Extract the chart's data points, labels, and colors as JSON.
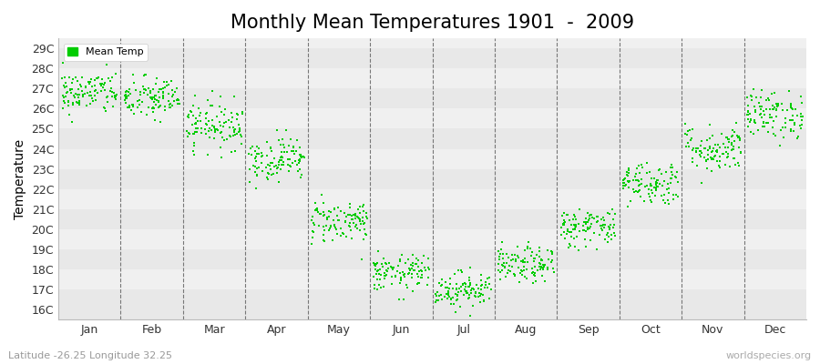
{
  "title": "Monthly Mean Temperatures 1901  -  2009",
  "ylabel": "Temperature",
  "xlabel_bottom": "Latitude -26.25 Longitude 32.25",
  "watermark": "worldspecies.org",
  "legend_label": "Mean Temp",
  "months": [
    "Jan",
    "Feb",
    "Mar",
    "Apr",
    "May",
    "Jun",
    "Jul",
    "Aug",
    "Sep",
    "Oct",
    "Nov",
    "Dec"
  ],
  "dashed_lines_x": [
    1,
    2,
    3,
    4,
    5,
    6,
    7,
    8,
    9,
    10,
    11
  ],
  "ylim": [
    15.5,
    29.5
  ],
  "yticks": [
    16,
    17,
    18,
    19,
    20,
    21,
    22,
    23,
    24,
    25,
    26,
    27,
    28,
    29
  ],
  "ytick_labels": [
    "16C",
    "17C",
    "18C",
    "19C",
    "20C",
    "21C",
    "22C",
    "23C",
    "24C",
    "25C",
    "26C",
    "27C",
    "28C",
    "29C"
  ],
  "n_years": 109,
  "dot_color": "#00CC00",
  "dot_size": 3,
  "background_color": "#ffffff",
  "stripe_colors": [
    "#e8e8e8",
    "#f4f4f4"
  ],
  "title_fontsize": 15,
  "axis_label_fontsize": 10,
  "tick_label_fontsize": 9,
  "mean_temps": [
    26.8,
    26.5,
    25.2,
    23.5,
    20.4,
    17.8,
    17.0,
    18.2,
    20.1,
    22.3,
    24.0,
    25.7
  ],
  "std_devs": [
    0.55,
    0.55,
    0.6,
    0.55,
    0.55,
    0.45,
    0.45,
    0.45,
    0.5,
    0.55,
    0.6,
    0.6
  ],
  "band_colors": [
    "#dcdcdc",
    "#e8e8e8",
    "#dcdcdc",
    "#e8e8e8",
    "#dcdcdc",
    "#e8e8e8",
    "#dcdcdc",
    "#e8e8e8",
    "#dcdcdc",
    "#e8e8e8",
    "#dcdcdc",
    "#e8e8e8",
    "#dcdcdc",
    "#e8e8e8"
  ]
}
